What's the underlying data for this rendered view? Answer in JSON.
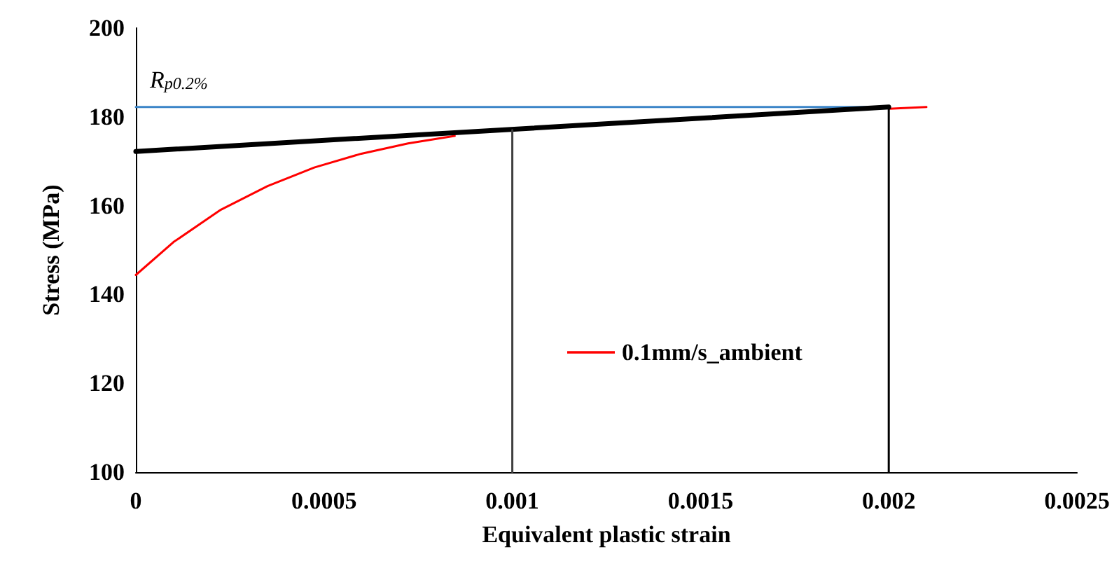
{
  "chart_data": {
    "type": "line",
    "xlabel": "Equivalent plastic strain",
    "ylabel": "Stress (MPa)",
    "xlim": [
      0,
      0.0025
    ],
    "xticks": [
      0,
      0.0005,
      0.001,
      0.0015,
      0.002,
      0.0025
    ],
    "ylim": [
      100,
      200
    ],
    "yticks": [
      100,
      120,
      140,
      160,
      180,
      200
    ],
    "grid": false,
    "legend": "right",
    "marker": "none",
    "line_style": "solid",
    "annotations": [
      {
        "text": "R$_{p0.2%}$",
        "x": 0,
        "y": 182.2
      }
    ],
    "series": [
      {
        "name": "0.1mm/s_ambient",
        "color": "#ff0000",
        "x": [
          0,
          0.0001,
          0.000226,
          0.00035,
          0.000474,
          0.000599,
          0.000723,
          0.000847,
          0.000971,
          0.0012,
          0.0015,
          0.0018,
          0.002,
          0.0021
        ],
        "values": [
          144.4,
          151.8,
          159.1,
          164.4,
          168.6,
          171.7,
          174.0,
          175.7,
          null,
          null,
          null,
          null,
          181.8,
          182.2
        ]
      },
      {
        "color": "#3c85c8",
        "x": [
          0,
          0.002
        ],
        "values": [
          182.2,
          182.2
        ]
      },
      {
        "color": "#000000",
        "x": [
          0,
          0.002
        ],
        "values": [
          172.2,
          182.2
        ]
      },
      {
        "color": "#404040",
        "x": [
          0.001,
          0.001
        ],
        "values": [
          100,
          177.0
        ]
      },
      {
        "color": "#000000",
        "x": [
          0.002,
          0.002
        ],
        "values": [
          100,
          182.2
        ]
      }
    ]
  }
}
